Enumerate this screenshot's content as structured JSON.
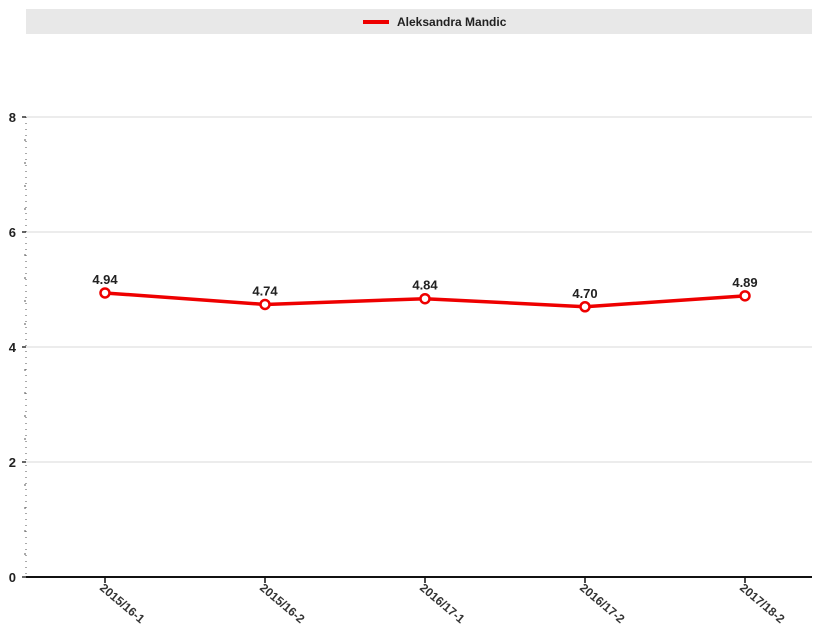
{
  "chart_data": {
    "type": "line",
    "categories": [
      "2015/16-1",
      "2015/16-2",
      "2016/17-1",
      "2016/17-2",
      "2017/18-2"
    ],
    "series": [
      {
        "name": "Aleksandra Mandic",
        "values": [
          4.94,
          4.74,
          4.84,
          4.7,
          4.89
        ],
        "labels": [
          "4.94",
          "4.74",
          "4.84",
          "4.70",
          "4.89"
        ],
        "color": "#ee0000"
      }
    ],
    "ylim": [
      0,
      8
    ],
    "yticks": [
      "0",
      "2",
      "4",
      "6",
      "8"
    ],
    "grid": true,
    "legend": "top"
  }
}
